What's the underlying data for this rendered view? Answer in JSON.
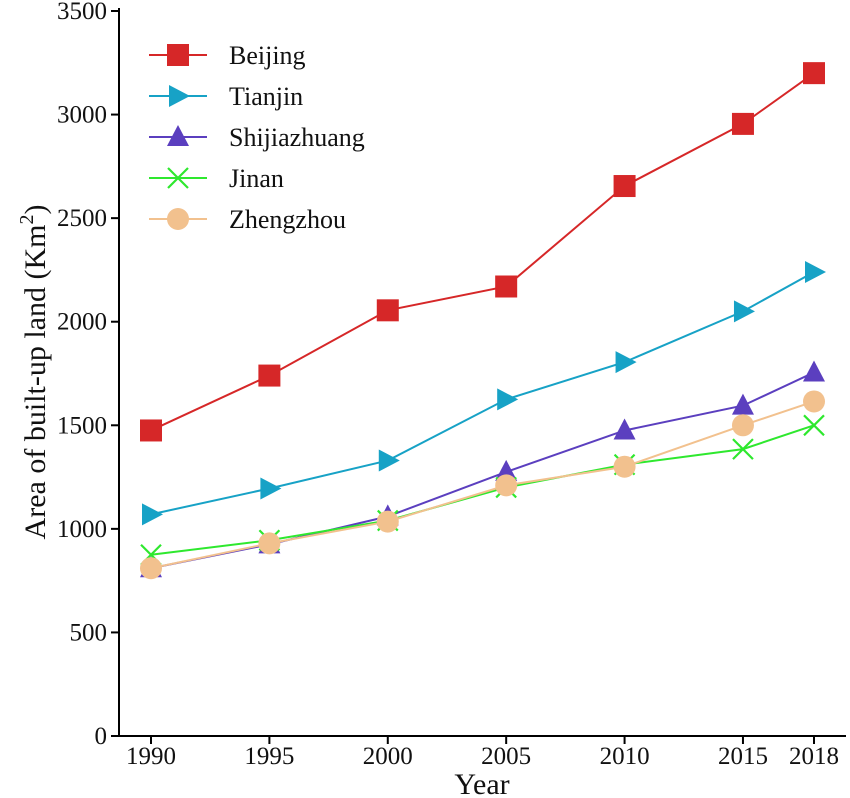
{
  "chart_data": {
    "type": "line",
    "title": "",
    "xlabel": "Year",
    "ylabel": "Area of built-up land (Km",
    "ylabel_superscript": "2",
    "ylabel_close": ")",
    "x": [
      1990,
      1995,
      2000,
      2005,
      2010,
      2015,
      2018
    ],
    "xticks": [
      "1990",
      "1995",
      "2000",
      "2005",
      "2010",
      "2015",
      "2018"
    ],
    "yticks": [
      "0",
      "500",
      "1000",
      "1500",
      "2000",
      "2500",
      "3000",
      "3500"
    ],
    "xlim": [
      1989,
      2019
    ],
    "ylim": [
      0,
      3500
    ],
    "grid": false,
    "legend_position": "top-left",
    "series": [
      {
        "name": "Beijing",
        "color": "#d62728",
        "marker": "square",
        "values": [
          1475,
          1740,
          2055,
          2170,
          2655,
          2955,
          3200
        ]
      },
      {
        "name": "Tianjin",
        "color": "#17a2c6",
        "marker": "triangle-right",
        "values": [
          1070,
          1195,
          1330,
          1625,
          1805,
          2050,
          2240
        ]
      },
      {
        "name": "Shijiazhuang",
        "color": "#5b3fbf",
        "marker": "triangle-up",
        "values": [
          810,
          925,
          1060,
          1275,
          1475,
          1595,
          1755
        ]
      },
      {
        "name": "Jinan",
        "color": "#2ee82e",
        "marker": "x",
        "values": [
          875,
          945,
          1040,
          1200,
          1310,
          1385,
          1500
        ]
      },
      {
        "name": "Zhengzhou",
        "color": "#f2c18e",
        "marker": "circle",
        "values": [
          810,
          930,
          1035,
          1210,
          1300,
          1500,
          1615
        ]
      }
    ]
  }
}
